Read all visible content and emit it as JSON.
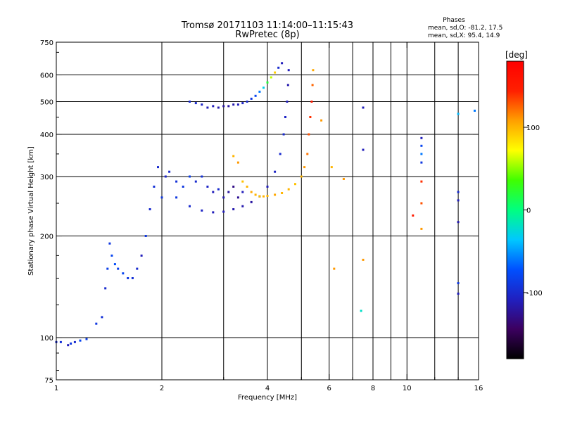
{
  "chart_data": {
    "type": "scatter",
    "title": "Tromsø 20171103 11:14:00–11:15:43",
    "subtitle": "RwPretec (8p)",
    "xlabel": "Frequency [MHz]",
    "ylabel": "Stationary phase Virtual Height [km]",
    "x_scale": "log",
    "y_scale": "log",
    "xlim": [
      1,
      16
    ],
    "ylim": [
      75,
      750
    ],
    "x_ticks": [
      1,
      2,
      4,
      6,
      8,
      10,
      16
    ],
    "x_tick_labels": [
      "1",
      "2",
      "4",
      "6",
      "8",
      "10",
      "16"
    ],
    "x_minor_ticks": [
      3,
      5,
      7,
      9,
      12,
      14
    ],
    "y_ticks": [
      75,
      100,
      200,
      300,
      400,
      500,
      600,
      750
    ],
    "y_tick_labels": [
      "75",
      "100",
      "200",
      "300",
      "400",
      "500",
      "600",
      "750"
    ],
    "grid": true,
    "stats": {
      "heading": "Phases",
      "line_o": "mean, sd,O: -81.2, 17.5",
      "line_x": "mean, sd,X: 95.4, 14.9"
    },
    "colorbar": {
      "label": "[deg]",
      "range": [
        -180,
        180
      ],
      "ticks": [
        100,
        0,
        -100
      ],
      "tick_labels": [
        "100",
        "0",
        "-100"
      ],
      "colors": [
        "#000000",
        "#3c0060",
        "#2020c0",
        "#0050ff",
        "#00c8ff",
        "#00ff80",
        "#40ff00",
        "#ffff00",
        "#ffa000",
        "#ff2000",
        "#ff0000"
      ]
    },
    "series": [
      {
        "x": [
          1.0,
          1.03,
          1.08,
          1.1,
          1.13,
          1.17,
          1.22,
          1.3,
          1.35,
          1.38,
          1.4,
          1.42,
          1.44,
          1.47,
          1.5,
          1.55,
          1.6,
          1.65,
          1.7,
          1.75,
          1.8,
          1.85,
          1.9,
          1.95,
          2.0,
          2.05,
          2.1,
          2.2,
          2.3,
          2.4,
          2.5,
          2.6,
          2.7,
          2.8,
          2.9,
          3.0,
          3.1,
          3.2,
          3.3,
          3.4
        ],
        "y": [
          97,
          97,
          95,
          96,
          97,
          98,
          99,
          110,
          115,
          140,
          160,
          190,
          175,
          165,
          160,
          155,
          150,
          150,
          160,
          175,
          200,
          240,
          280,
          320,
          260,
          300,
          310,
          290,
          280,
          300,
          290,
          300,
          280,
          270,
          275,
          260,
          270,
          280,
          260,
          270
        ],
        "phase": [
          -100,
          -95,
          -110,
          -90,
          -100,
          -80,
          -85,
          -90,
          -95,
          -100,
          -85,
          -90,
          -80,
          -75,
          -85,
          -80,
          -90,
          -95,
          -100,
          -110,
          -90,
          -100,
          -95,
          -100,
          -90,
          -105,
          -100,
          -95,
          -90,
          -85,
          -100,
          -95,
          -105,
          -110,
          -100,
          -115,
          -120,
          -130,
          -125,
          -110
        ]
      },
      {
        "x": [
          2.4,
          2.5,
          2.6,
          2.7,
          2.8,
          2.9,
          3.0,
          3.1,
          3.2,
          3.3,
          3.4,
          3.5,
          3.6,
          3.7,
          3.8,
          3.9,
          4.0,
          4.1,
          4.2,
          4.3,
          4.4
        ],
        "y": [
          500,
          495,
          490,
          480,
          485,
          480,
          485,
          485,
          490,
          490,
          495,
          500,
          510,
          520,
          535,
          550,
          570,
          590,
          610,
          630,
          650
        ],
        "phase": [
          -100,
          -100,
          -105,
          -110,
          -110,
          -115,
          -120,
          -120,
          -115,
          -110,
          -105,
          -100,
          -90,
          -80,
          -60,
          -30,
          20,
          60,
          90,
          -100,
          -110
        ]
      },
      {
        "x": [
          2.2,
          2.4,
          2.6,
          2.8,
          3.0,
          3.2,
          3.4,
          3.6,
          3.8,
          4.0,
          4.2,
          4.35,
          4.45,
          4.5,
          4.55,
          4.58,
          4.6
        ],
        "y": [
          260,
          245,
          238,
          235,
          236,
          240,
          245,
          252,
          262,
          280,
          310,
          350,
          400,
          450,
          500,
          560,
          620
        ],
        "phase": [
          -90,
          -100,
          -105,
          -110,
          -110,
          -115,
          -115,
          -120,
          -115,
          -110,
          -105,
          -100,
          -100,
          -105,
          -110,
          -115,
          -110
        ]
      },
      {
        "x": [
          3.2,
          3.3,
          3.4,
          3.5,
          3.6,
          3.7,
          3.8,
          3.9,
          4.0,
          4.2,
          4.4,
          4.6,
          4.8,
          5.0,
          5.1,
          5.2,
          5.25,
          5.3,
          5.35,
          5.38,
          5.4
        ],
        "y": [
          345,
          330,
          290,
          280,
          270,
          265,
          262,
          262,
          263,
          265,
          268,
          275,
          285,
          300,
          320,
          350,
          400,
          450,
          500,
          560,
          620
        ],
        "phase": [
          100,
          110,
          95,
          100,
          105,
          100,
          95,
          100,
          100,
          105,
          100,
          100,
          95,
          100,
          110,
          120,
          130,
          140,
          150,
          125,
          105
        ]
      },
      {
        "x": [
          5.7,
          6.1,
          6.2,
          6.6,
          7.4,
          7.5,
          7.5,
          7.5,
          10.4,
          11.0,
          11.0,
          11.0,
          11.0,
          11.0,
          11.0,
          11.0,
          14.0,
          14.0,
          14.0,
          14.0,
          14.0,
          14.0,
          15.6
        ],
        "y": [
          440,
          320,
          160,
          295,
          120,
          170,
          360,
          480,
          230,
          390,
          370,
          350,
          330,
          290,
          250,
          210,
          460,
          270,
          255,
          220,
          145,
          135,
          470
        ],
        "phase": [
          110,
          100,
          110,
          110,
          -20,
          110,
          -110,
          -110,
          150,
          -110,
          -80,
          -60,
          -90,
          140,
          130,
          110,
          -40,
          -100,
          -110,
          -115,
          -90,
          -110,
          -60
        ]
      }
    ]
  }
}
